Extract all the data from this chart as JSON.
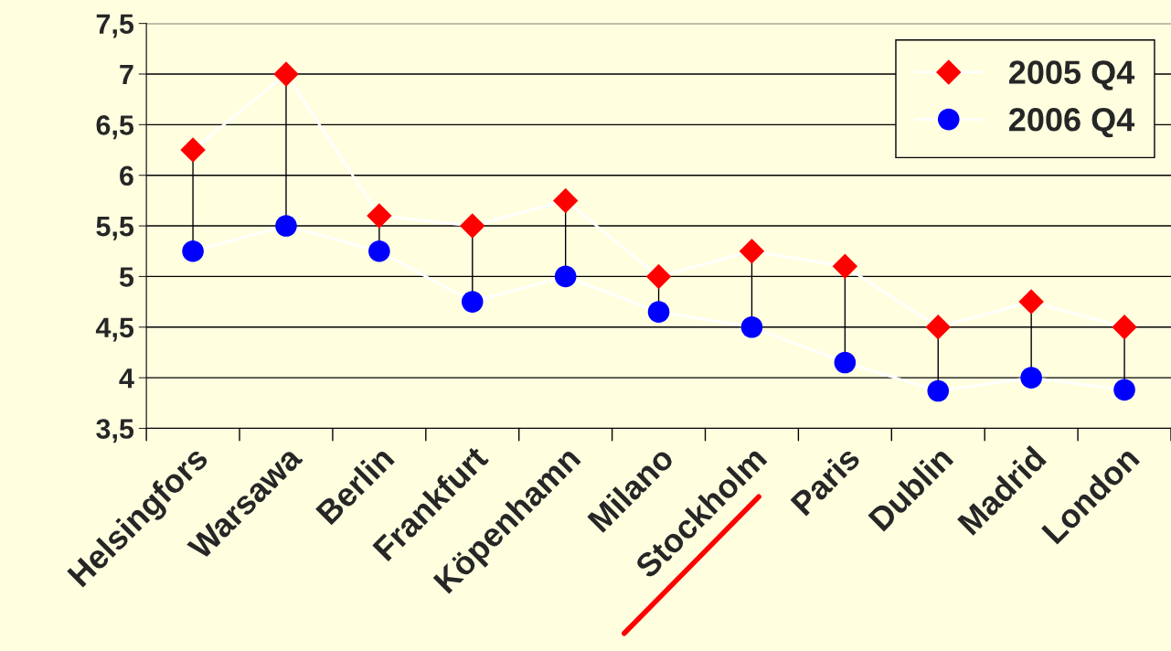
{
  "chart_data": {
    "type": "line",
    "categories": [
      "Helsingfors",
      "Warsawa",
      "Berlin",
      "Frankfurt",
      "Köpenhamn",
      "Milano",
      "Stockholm",
      "Paris",
      "Dublin",
      "Madrid",
      "London"
    ],
    "series": [
      {
        "name": "2005 Q4",
        "color": "#ff0000",
        "marker": "diamond",
        "values": [
          6.25,
          7.0,
          5.6,
          5.5,
          5.75,
          5.0,
          5.25,
          5.1,
          4.5,
          4.75,
          4.5
        ]
      },
      {
        "name": "2006 Q4",
        "color": "#0000ff",
        "marker": "circle",
        "values": [
          5.25,
          5.5,
          5.25,
          4.75,
          5.0,
          4.65,
          4.5,
          4.15,
          3.87,
          4.0,
          3.88
        ]
      }
    ],
    "ylim": [
      3.5,
      7.5
    ],
    "yticks": [
      {
        "value": 3.5,
        "label": "3,5"
      },
      4,
      {
        "value": 4.5,
        "label": "4,5"
      },
      5,
      {
        "value": 5.5,
        "label": "5,5"
      },
      6,
      {
        "value": 6.5,
        "label": "6,5"
      },
      7,
      {
        "value": 7.5,
        "label": "7,5"
      }
    ],
    "grid": "y",
    "legend": "top right"
  }
}
